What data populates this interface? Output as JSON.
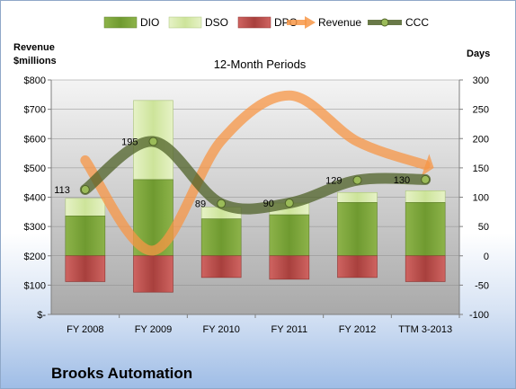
{
  "company": "Brooks Automation",
  "chart_data": {
    "type": "bar",
    "title": "12-Month Periods",
    "left_axis_label": [
      "Revenue",
      "$millions"
    ],
    "right_axis_label": "Days",
    "categories": [
      "FY 2008",
      "FY 2009",
      "FY 2010",
      "FY 2011",
      "FY 2012",
      "TTM 3-2013"
    ],
    "left_ylim": [
      0,
      800
    ],
    "left_ticks": [
      0,
      100,
      200,
      300,
      400,
      500,
      600,
      700,
      800
    ],
    "left_tick_labels": [
      "$-",
      "$100",
      "$200",
      "$300",
      "$400",
      "$500",
      "$600",
      "$700",
      "$800"
    ],
    "right_ylim": [
      -100,
      300
    ],
    "right_ticks": [
      -100,
      -50,
      0,
      50,
      100,
      150,
      200,
      250,
      300
    ],
    "legend": [
      "DIO",
      "DSO",
      "DPO",
      "Revenue",
      "CCC"
    ],
    "legend_position": "top",
    "series": [
      {
        "name": "DIO",
        "type": "stacked-bar",
        "axis": "right",
        "color": "#78a33c",
        "values": [
          68,
          130,
          63,
          70,
          91,
          91
        ]
      },
      {
        "name": "DSO",
        "type": "stacked-bar",
        "axis": "right",
        "color": "#d9ebb0",
        "values": [
          30,
          135,
          20,
          20,
          17,
          20
        ]
      },
      {
        "name": "DPO",
        "type": "bar-below-zero",
        "axis": "right",
        "color": "#c0504d",
        "values": [
          -44,
          -62,
          -37,
          -40,
          -37,
          -44
        ]
      },
      {
        "name": "Revenue",
        "type": "line",
        "axis": "left",
        "color": "#f79646",
        "values": [
          526,
          218,
          593,
          747,
          590,
          510
        ]
      },
      {
        "name": "CCC",
        "type": "line",
        "axis": "right",
        "color": "#4f6228",
        "values": [
          113,
          195,
          89,
          90,
          129,
          130
        ],
        "labels": [
          "113",
          "195",
          "89",
          "90",
          "129",
          "130"
        ]
      }
    ]
  }
}
